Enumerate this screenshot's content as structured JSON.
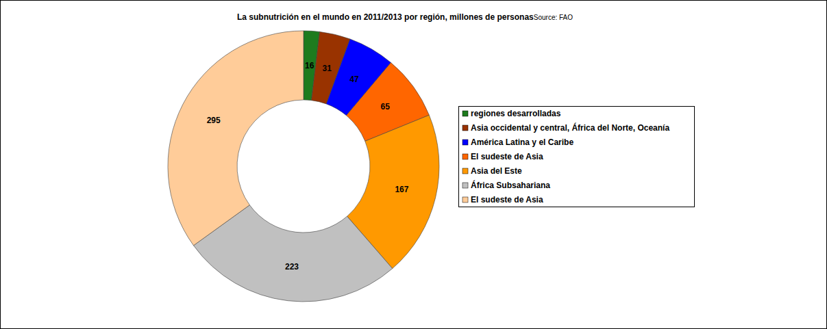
{
  "chart_data": {
    "type": "pie",
    "title": "La subnutrición en el mundo en 2011/2013 por región, millones de personas",
    "subtitle": "Source: FAO",
    "categories": [
      "regiones desarrolladas",
      "Asia occidental y central, África del Norte, Oceanía",
      "América Latina y el Caribe",
      "El sudeste de Asia",
      "Asia del Este",
      "África Subsahariana",
      "El sudeste de Asia"
    ],
    "values": [
      16,
      31,
      47,
      65,
      167,
      223,
      295
    ],
    "colors": [
      "#1e7b1e",
      "#993300",
      "#0000ff",
      "#ff6600",
      "#ff9900",
      "#c0c0c0",
      "#ffcc99"
    ],
    "data_labels": true,
    "legend": "right"
  }
}
